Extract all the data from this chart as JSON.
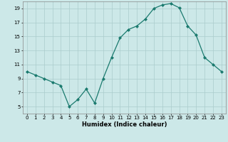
{
  "x": [
    0,
    1,
    2,
    3,
    4,
    5,
    6,
    7,
    8,
    9,
    10,
    11,
    12,
    13,
    14,
    15,
    16,
    17,
    18,
    19,
    20,
    21,
    22,
    23
  ],
  "y": [
    10.0,
    9.5,
    9.0,
    8.5,
    8.0,
    5.0,
    6.0,
    7.5,
    5.5,
    9.0,
    12.0,
    14.8,
    16.0,
    16.5,
    17.5,
    19.0,
    19.5,
    19.7,
    19.1,
    16.5,
    15.2,
    12.0,
    11.0,
    10.0
  ],
  "xlabel": "Humidex (Indice chaleur)",
  "ylim": [
    4,
    20
  ],
  "xlim": [
    -0.5,
    23.5
  ],
  "yticks": [
    5,
    7,
    9,
    11,
    13,
    15,
    17,
    19
  ],
  "xticks": [
    0,
    1,
    2,
    3,
    4,
    5,
    6,
    7,
    8,
    9,
    10,
    11,
    12,
    13,
    14,
    15,
    16,
    17,
    18,
    19,
    20,
    21,
    22,
    23
  ],
  "line_color": "#1a7a6e",
  "marker": "D",
  "marker_size": 2.0,
  "bg_color": "#cce8e8",
  "grid_color": "#aacccc",
  "xlabel_fontsize": 6.0,
  "tick_fontsize": 5.0
}
